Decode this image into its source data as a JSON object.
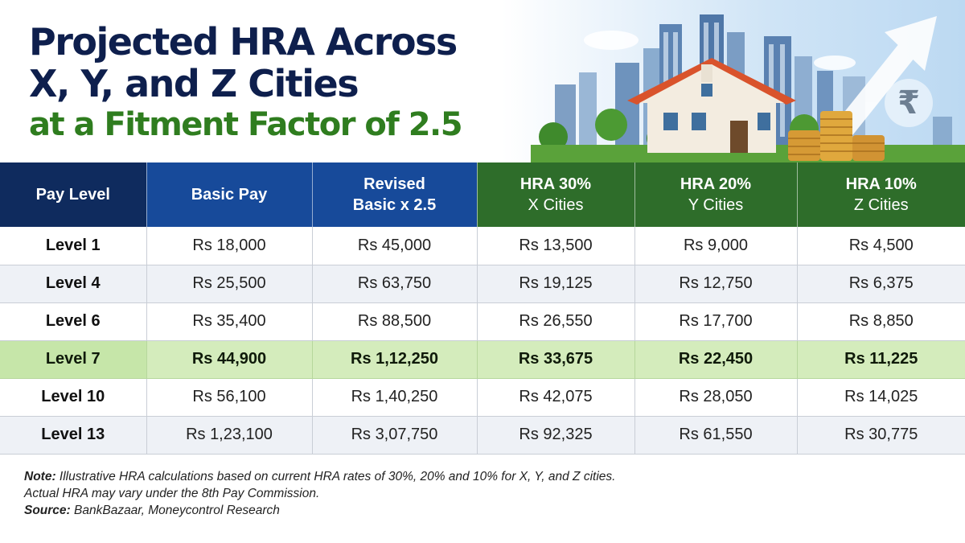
{
  "title": {
    "line1": "Projected HRA Across",
    "line2": "X, Y, and Z Cities",
    "line3": "at a Fitment Factor of 2.5"
  },
  "illustration": {
    "icons": [
      "city-skyline-icon",
      "house-icon",
      "coin-stack-icon",
      "rupee-icon",
      "up-arrow-icon"
    ],
    "rupee_symbol": "₹"
  },
  "table": {
    "headers": [
      {
        "main": "Pay Level",
        "sub": ""
      },
      {
        "main": "Basic Pay",
        "sub": ""
      },
      {
        "main": "Revised",
        "sub": "Basic x 2.5"
      },
      {
        "main": "HRA 30%",
        "sub": "X Cities"
      },
      {
        "main": "HRA 20%",
        "sub": "Y Cities"
      },
      {
        "main": "HRA 10%",
        "sub": "Z Cities"
      }
    ],
    "rows": [
      [
        "Level 1",
        "Rs 18,000",
        "Rs 45,000",
        "Rs 13,500",
        "Rs 9,000",
        "Rs 4,500"
      ],
      [
        "Level 4",
        "Rs 25,500",
        "Rs 63,750",
        "Rs 19,125",
        "Rs 12,750",
        "Rs 6,375"
      ],
      [
        "Level 6",
        "Rs 35,400",
        "Rs 88,500",
        "Rs 26,550",
        "Rs 17,700",
        "Rs 8,850"
      ],
      [
        "Level 7",
        "Rs 44,900",
        "Rs 1,12,250",
        "Rs 33,675",
        "Rs 22,450",
        "Rs 11,225"
      ],
      [
        "Level 10",
        "Rs 56,100",
        "Rs 1,40,250",
        "Rs 42,075",
        "Rs 28,050",
        "Rs 14,025"
      ],
      [
        "Level 13",
        "Rs 1,23,100",
        "Rs 3,07,750",
        "Rs 92,325",
        "Rs 61,550",
        "Rs 30,775"
      ]
    ],
    "highlighted_row": "Level 7"
  },
  "notes": {
    "note_label": "Note:",
    "note_text": " Illustrative HRA calculations based on current HRA rates of 30%, 20% and 10% for X, Y, and Z cities.",
    "note_text2": "Actual HRA may vary under the 8th Pay Commission.",
    "source_label": "Source:",
    "source_text": " BankBazaar, Moneycontrol Research"
  },
  "colors": {
    "title_navy": "#0e1f4d",
    "title_green": "#2f7d1f",
    "header_navy": "#0f2b5e",
    "header_blue": "#174a9a",
    "header_green": "#2e6d2a",
    "highlight_row": "#d4ecbc"
  }
}
